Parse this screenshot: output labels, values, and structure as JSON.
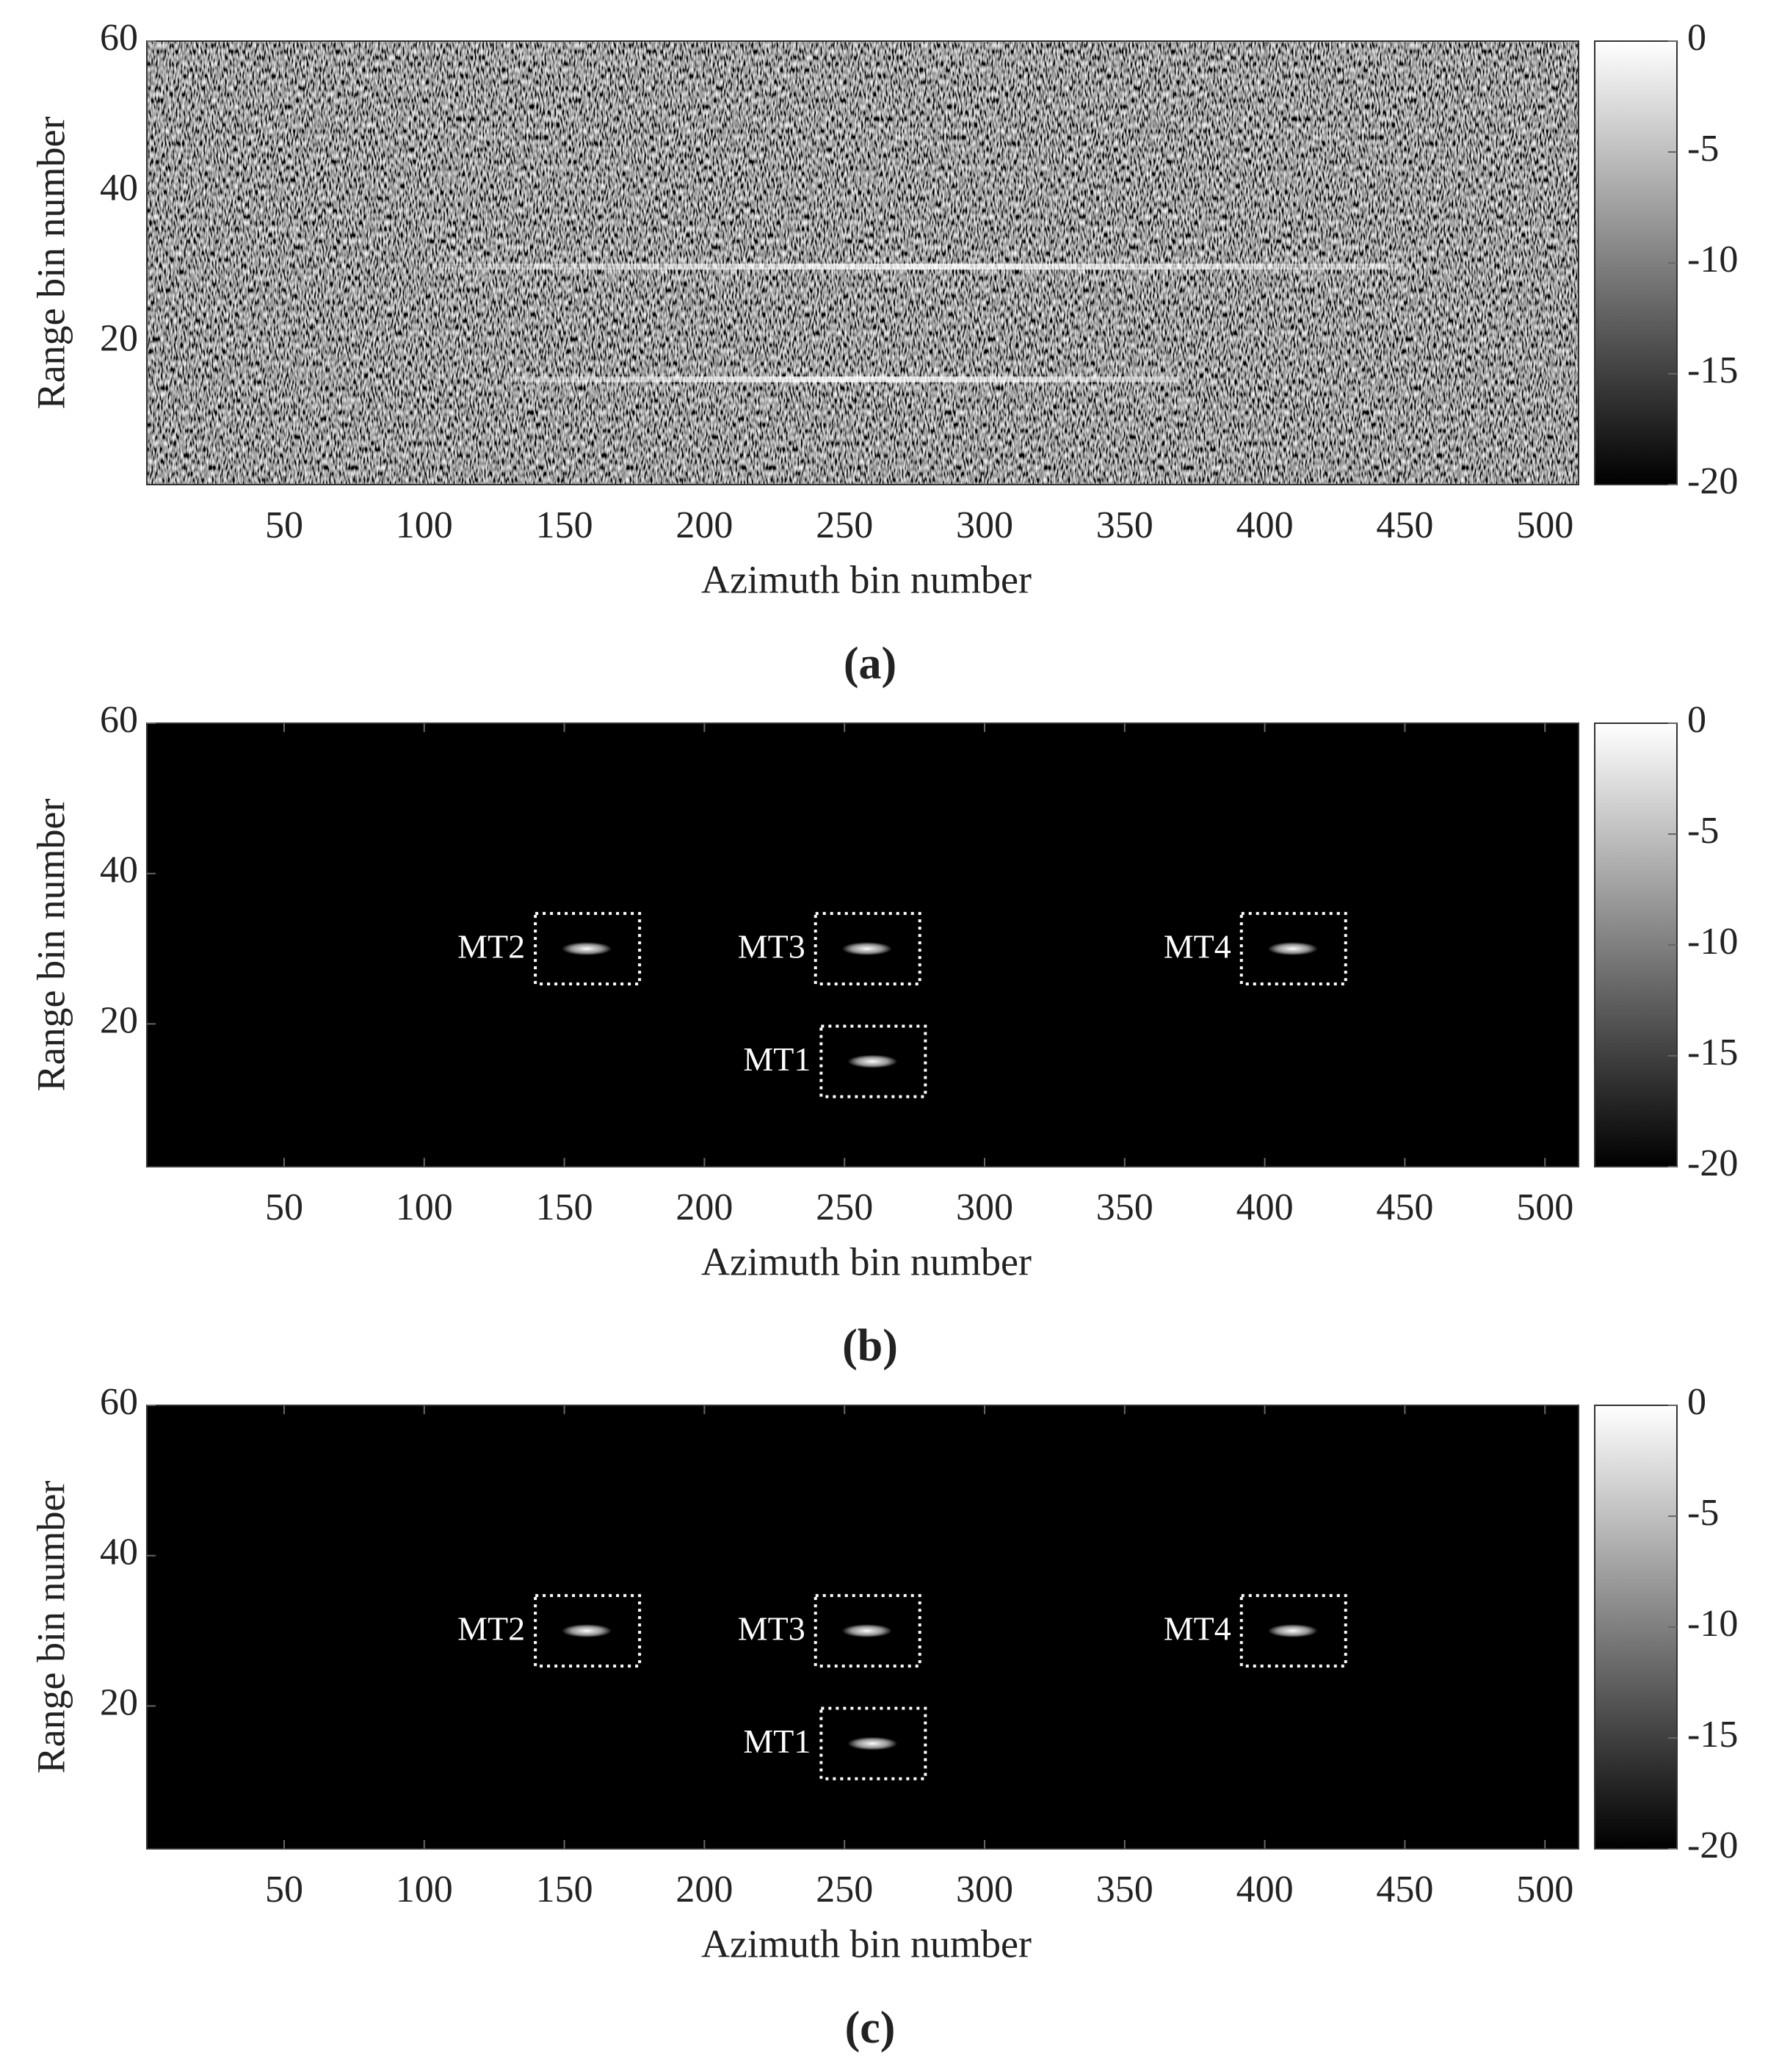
{
  "chart_data": [
    {
      "type": "heatmap",
      "panel_label": "(a)",
      "xlabel": "Azimuth bin number",
      "ylabel": "Range bin number",
      "xlim": [
        1,
        512
      ],
      "ylim": [
        1,
        60
      ],
      "xticks": [
        50,
        100,
        150,
        200,
        250,
        300,
        350,
        400,
        450,
        500
      ],
      "yticks": [
        20,
        40,
        60
      ],
      "clim": [
        -20,
        0
      ],
      "cticks": [
        0,
        -5,
        -10,
        -15,
        -20
      ],
      "colormap": "gray",
      "noise": true,
      "streaks": [
        {
          "range": 30,
          "start": 105,
          "end": 450
        },
        {
          "range": 15,
          "start": 130,
          "end": 370
        }
      ],
      "targets": []
    },
    {
      "type": "heatmap",
      "panel_label": "(b)",
      "xlabel": "Azimuth bin number",
      "ylabel": "Range bin number",
      "xlim": [
        1,
        512
      ],
      "ylim": [
        1,
        60
      ],
      "xticks": [
        50,
        100,
        150,
        200,
        250,
        300,
        350,
        400,
        450,
        500
      ],
      "yticks": [
        20,
        40,
        60
      ],
      "clim": [
        -20,
        0
      ],
      "cticks": [
        0,
        -5,
        -10,
        -15,
        -20
      ],
      "colormap": "gray",
      "noise": false,
      "streaks": [],
      "targets": [
        {
          "label": "MT2",
          "azimuth": 158,
          "range": 30
        },
        {
          "label": "MT3",
          "azimuth": 258,
          "range": 30
        },
        {
          "label": "MT4",
          "azimuth": 410,
          "range": 30
        },
        {
          "label": "MT1",
          "azimuth": 260,
          "range": 15
        }
      ]
    },
    {
      "type": "heatmap",
      "panel_label": "(c)",
      "xlabel": "Azimuth bin number",
      "ylabel": "Range bin number",
      "xlim": [
        1,
        512
      ],
      "ylim": [
        1,
        60
      ],
      "xticks": [
        50,
        100,
        150,
        200,
        250,
        300,
        350,
        400,
        450,
        500
      ],
      "yticks": [
        20,
        40,
        60
      ],
      "clim": [
        -20,
        0
      ],
      "cticks": [
        0,
        -5,
        -10,
        -15,
        -20
      ],
      "colormap": "gray",
      "noise": false,
      "streaks": [],
      "targets": [
        {
          "label": "MT2",
          "azimuth": 158,
          "range": 30
        },
        {
          "label": "MT3",
          "azimuth": 258,
          "range": 30
        },
        {
          "label": "MT4",
          "azimuth": 410,
          "range": 30
        },
        {
          "label": "MT1",
          "azimuth": 260,
          "range": 15
        }
      ]
    }
  ]
}
